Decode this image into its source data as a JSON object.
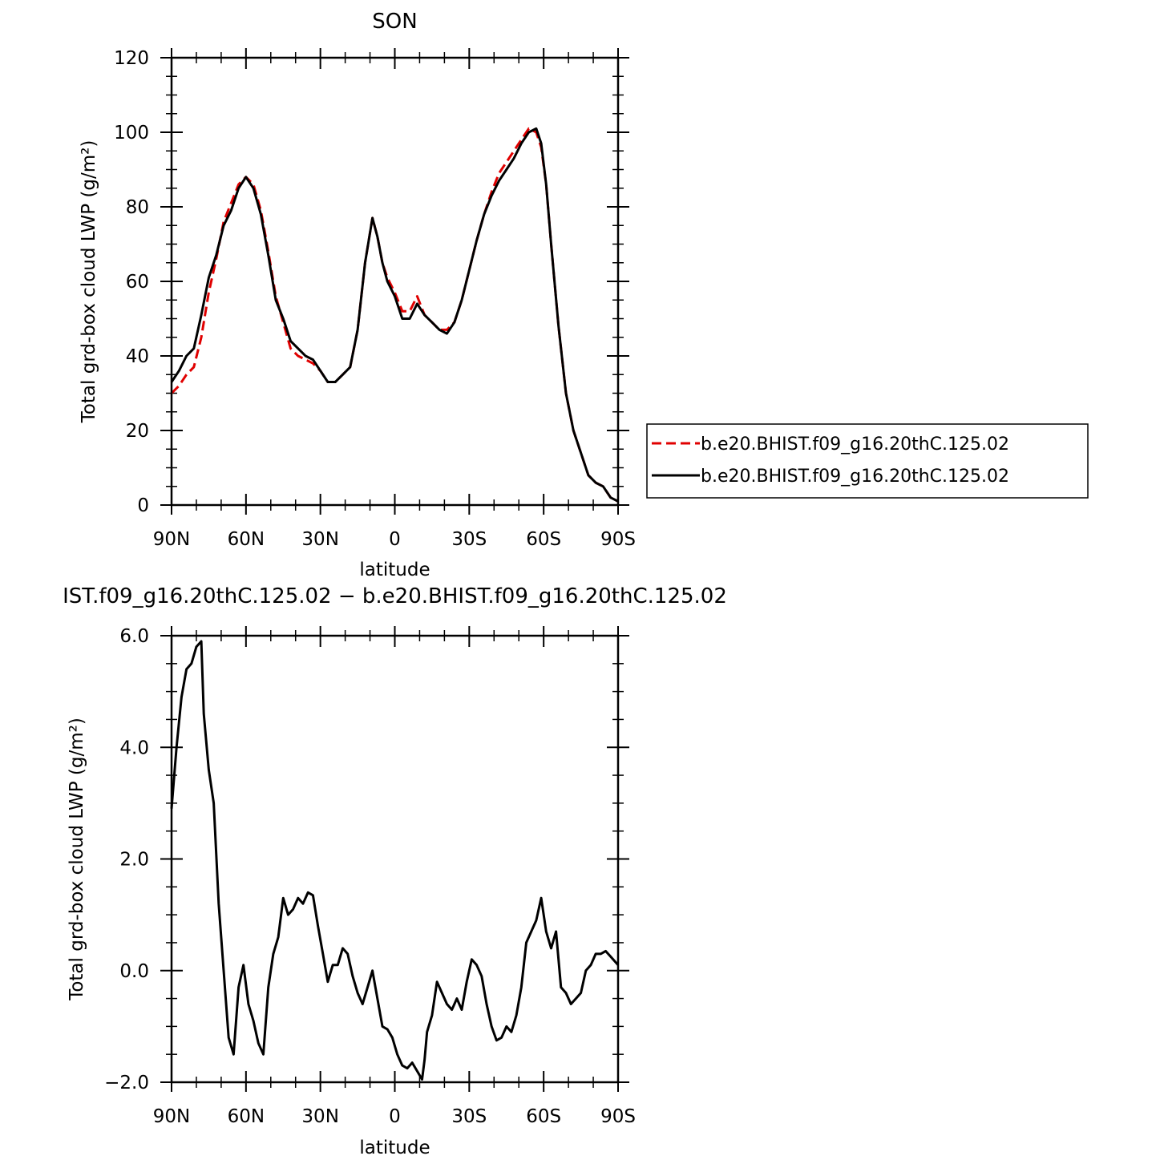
{
  "chart_data": [
    {
      "type": "line",
      "title": "SON",
      "xlabel": "latitude",
      "ylabel": "Total grd-box cloud LWP (g/m²)",
      "xlim": [
        -90,
        90
      ],
      "ylim": [
        0,
        120
      ],
      "x_ticks": [
        -90,
        -60,
        -30,
        0,
        30,
        60,
        90
      ],
      "x_tick_labels": [
        "90N",
        "60N",
        "30N",
        "0",
        "30S",
        "60S",
        "90S"
      ],
      "y_ticks": [
        0,
        20,
        40,
        60,
        80,
        100,
        120
      ],
      "y_tick_labels": [
        "0",
        "20",
        "40",
        "60",
        "80",
        "100",
        "120"
      ],
      "legend": {
        "placement": "right",
        "entries": [
          {
            "label": "b.e20.BHIST.f09_g16.20thC.125.02",
            "color": "#e00000",
            "dash": "dashed"
          },
          {
            "label": "b.e20.BHIST.f09_g16.20thC.125.02",
            "color": "#000000",
            "dash": "solid"
          }
        ]
      },
      "series": [
        {
          "color": "#e00000",
          "dash": "dashed",
          "x": [
            -90,
            -87,
            -84,
            -81,
            -78,
            -75,
            -72,
            -69,
            -66,
            -63,
            -60,
            -57,
            -54,
            -51,
            -48,
            -45,
            -42,
            -39,
            -36,
            -33,
            -30,
            -27,
            -24,
            -21,
            -18,
            -15,
            -12,
            -9,
            -7,
            -5,
            -3,
            0,
            3,
            6,
            9,
            12,
            15,
            18,
            21,
            24,
            27,
            30,
            33,
            36,
            39,
            42,
            45,
            48,
            51,
            54,
            57,
            59,
            61,
            63,
            66,
            69,
            72,
            75,
            78,
            81,
            84,
            87,
            90
          ],
          "values": [
            30,
            32,
            35,
            37,
            45,
            57,
            66,
            76,
            81,
            86,
            88,
            86,
            79,
            68,
            56,
            49,
            42,
            40,
            39,
            38,
            36,
            33,
            33,
            35,
            37,
            47,
            65,
            77,
            72,
            65,
            61,
            57,
            52,
            52,
            56,
            51,
            49,
            47,
            47,
            49,
            55,
            63,
            71,
            78,
            84,
            89,
            92,
            95,
            98,
            101,
            100,
            96,
            86,
            70,
            48,
            30,
            20,
            14,
            8,
            6,
            5,
            2,
            1
          ]
        },
        {
          "color": "#000000",
          "dash": "solid",
          "x": [
            -90,
            -87,
            -84,
            -81,
            -78,
            -75,
            -72,
            -69,
            -66,
            -63,
            -60,
            -57,
            -54,
            -51,
            -48,
            -45,
            -42,
            -39,
            -36,
            -33,
            -30,
            -27,
            -24,
            -21,
            -18,
            -15,
            -12,
            -9,
            -7,
            -5,
            -3,
            0,
            3,
            6,
            9,
            12,
            15,
            18,
            21,
            24,
            27,
            30,
            33,
            36,
            39,
            42,
            45,
            48,
            51,
            54,
            57,
            59,
            61,
            63,
            66,
            69,
            72,
            75,
            78,
            81,
            84,
            87,
            90
          ],
          "values": [
            33,
            36,
            40,
            42,
            51,
            61,
            67,
            75,
            79,
            85,
            88,
            85,
            78,
            67,
            55,
            50,
            44,
            42,
            40,
            39,
            36,
            33,
            33,
            35,
            37,
            47,
            65,
            77,
            72,
            65,
            60,
            56,
            50,
            50,
            54,
            51,
            49,
            47,
            46,
            49,
            55,
            63,
            71,
            78,
            83,
            87,
            90,
            93,
            97,
            100,
            101,
            97,
            86,
            70,
            48,
            30,
            20,
            14,
            8,
            6,
            5,
            2,
            1
          ]
        }
      ]
    },
    {
      "type": "line",
      "title": "IST.f09_g16.20thC.125.02 − b.e20.BHIST.f09_g16.20thC.125.02",
      "xlabel": "latitude",
      "ylabel": "Total grd-box cloud LWP (g/m²)",
      "xlim": [
        -90,
        90
      ],
      "ylim": [
        -2,
        6
      ],
      "x_ticks": [
        -90,
        -60,
        -30,
        0,
        30,
        60,
        90
      ],
      "x_tick_labels": [
        "90N",
        "60N",
        "30N",
        "0",
        "30S",
        "60S",
        "90S"
      ],
      "y_ticks": [
        -2,
        0,
        2,
        4,
        6
      ],
      "y_tick_labels": [
        "−2.0",
        "0.0",
        "2.0",
        "4.0",
        "6.0"
      ],
      "series": [
        {
          "color": "#000000",
          "dash": "solid",
          "x": [
            -90,
            -88,
            -86,
            -84,
            -82,
            -80,
            -78,
            -77,
            -75,
            -73,
            -71,
            -69,
            -67,
            -65,
            -63,
            -61,
            -59,
            -57,
            -55,
            -53,
            -51,
            -49,
            -47,
            -45,
            -43,
            -41,
            -39,
            -37,
            -35,
            -33,
            -31,
            -29,
            -27,
            -25,
            -23,
            -21,
            -19,
            -17,
            -15,
            -13,
            -11,
            -9,
            -7,
            -5,
            -3,
            -1,
            1,
            3,
            5,
            7,
            9,
            11,
            12,
            13,
            15,
            17,
            19,
            21,
            23,
            25,
            27,
            29,
            31,
            33,
            35,
            37,
            39,
            41,
            43,
            45,
            47,
            49,
            51,
            53,
            55,
            57,
            59,
            61,
            63,
            65,
            67,
            69,
            71,
            73,
            75,
            77,
            79,
            81,
            83,
            85,
            87,
            90
          ],
          "values": [
            2.9,
            4.0,
            4.9,
            5.4,
            5.5,
            5.8,
            5.9,
            4.6,
            3.6,
            3.0,
            1.2,
            0.0,
            -1.2,
            -1.5,
            -0.3,
            0.1,
            -0.6,
            -0.9,
            -1.3,
            -1.5,
            -0.3,
            0.3,
            0.6,
            1.3,
            1.0,
            1.1,
            1.3,
            1.2,
            1.4,
            1.35,
            0.8,
            0.3,
            -0.2,
            0.1,
            0.1,
            0.4,
            0.3,
            -0.1,
            -0.4,
            -0.6,
            -0.3,
            0.0,
            -0.5,
            -1.0,
            -1.05,
            -1.2,
            -1.5,
            -1.7,
            -1.75,
            -1.65,
            -1.8,
            -1.95,
            -1.6,
            -1.1,
            -0.8,
            -0.2,
            -0.4,
            -0.6,
            -0.7,
            -0.5,
            -0.7,
            -0.2,
            0.2,
            0.1,
            -0.1,
            -0.6,
            -1.0,
            -1.25,
            -1.2,
            -1.0,
            -1.1,
            -0.8,
            -0.3,
            0.5,
            0.7,
            0.9,
            1.3,
            0.7,
            0.4,
            0.7,
            -0.3,
            -0.4,
            -0.6,
            -0.5,
            -0.4,
            0.0,
            0.1,
            0.3,
            0.3,
            0.35,
            0.25,
            0.1
          ]
        }
      ]
    }
  ]
}
